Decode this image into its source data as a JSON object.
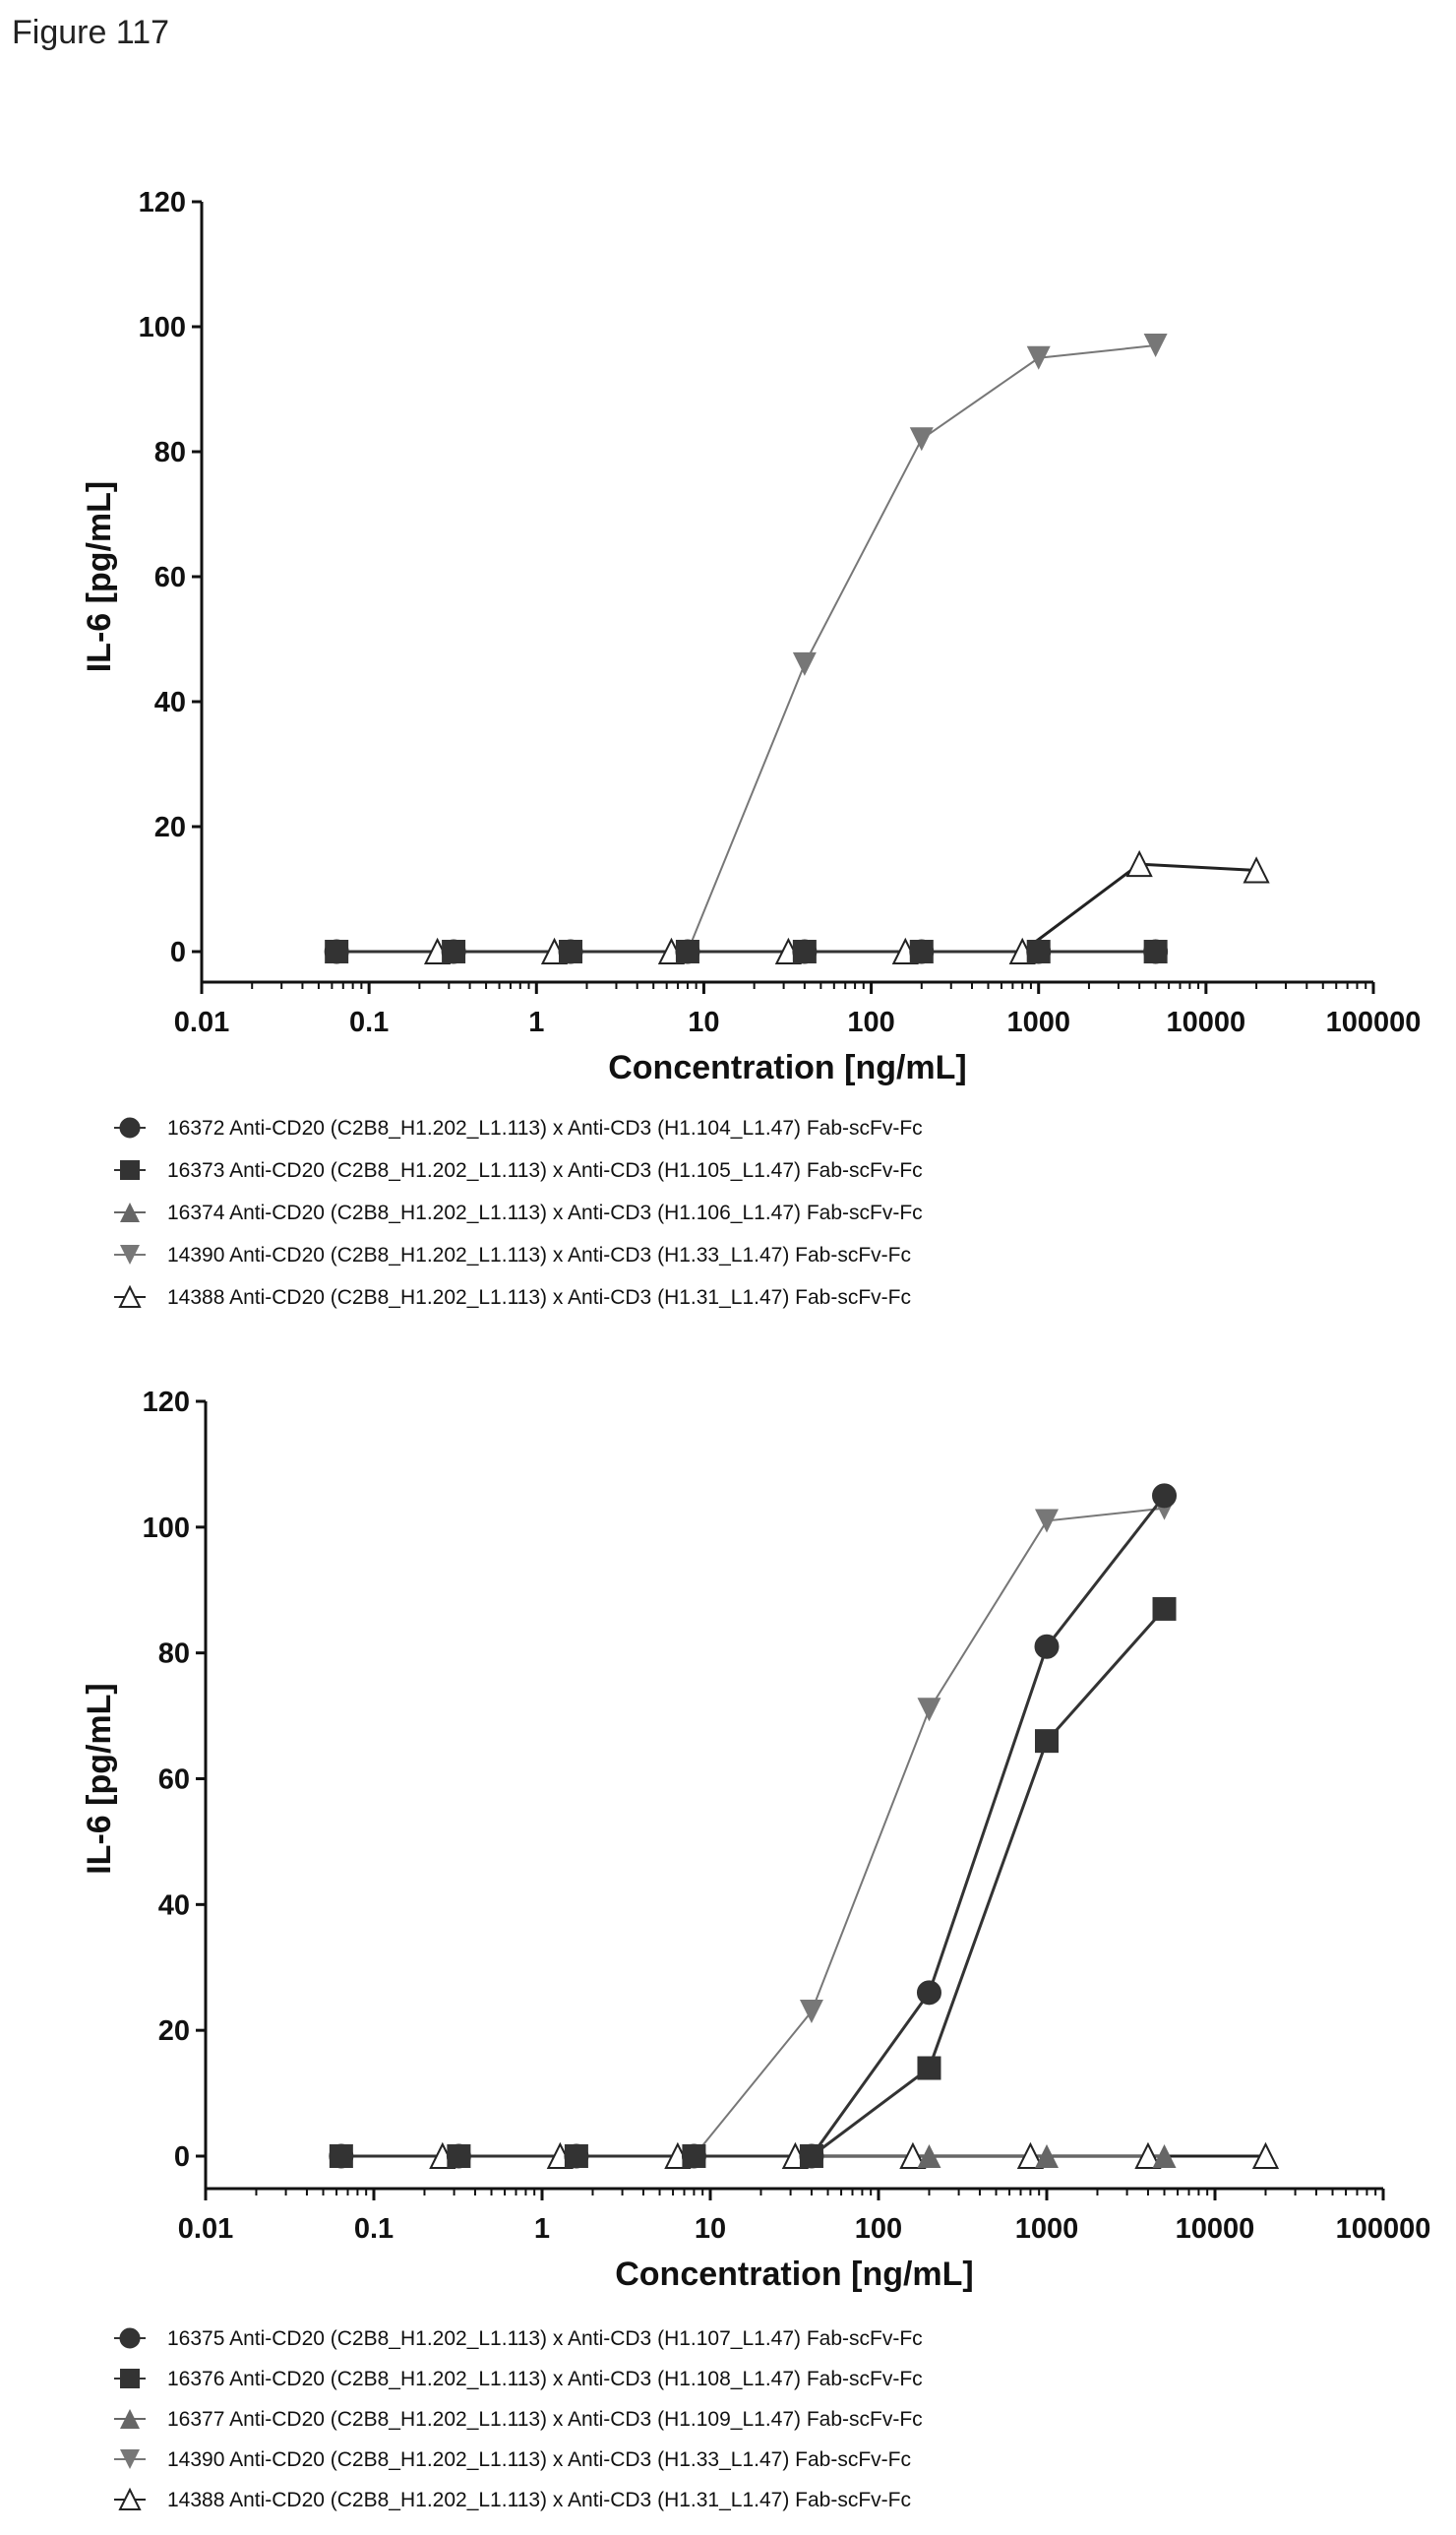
{
  "figure_title": "Figure 117",
  "chart_data": [
    {
      "type": "line",
      "xscale": "log",
      "xlabel": "Concentration [ng/mL]",
      "ylabel": "IL-6 [pg/mL]",
      "xlim": [
        0.01,
        100000
      ],
      "ylim": [
        -5,
        120
      ],
      "xticks": [
        "0.01",
        "0.1",
        "1",
        "10",
        "100",
        "1000",
        "10000",
        "100000"
      ],
      "xtick_values": [
        0.01,
        0.1,
        1,
        10,
        100,
        1000,
        10000,
        100000
      ],
      "yticks": [
        "0",
        "20",
        "40",
        "60",
        "80",
        "100",
        "120"
      ],
      "ytick_values": [
        0,
        20,
        40,
        60,
        80,
        100,
        120
      ],
      "grid": false,
      "legend_position": "bottom",
      "series": [
        {
          "name": "14390 Anti-CD20 (C2B8_H1.202_L1.113) x Anti-CD3 (H1.33_L1.47) Fab-scFv-Fc",
          "marker": "triangle-down",
          "color": "#777777",
          "x": [
            0.064,
            0.32,
            1.6,
            8,
            40,
            200,
            1000,
            5000
          ],
          "y": [
            0,
            0,
            0,
            0,
            46,
            82,
            95,
            97
          ]
        },
        {
          "name": "14388 Anti-CD20 (C2B8_H1.202_L1.113) x Anti-CD3 (H1.31_L1.47) Fab-scFv-Fc",
          "marker": "triangle-open",
          "color": "#222222",
          "x": [
            0.256,
            1.28,
            6.4,
            32,
            160,
            800,
            4000,
            20000
          ],
          "y": [
            0,
            0,
            0,
            0,
            0,
            0,
            14,
            13
          ]
        },
        {
          "name": "16374 Anti-CD20 (C2B8_H1.202_L1.113) x Anti-CD3 (H1.106_L1.47) Fab-scFv-Fc",
          "marker": "triangle-up",
          "color": "#666666",
          "x": [
            0.064,
            0.32,
            1.6,
            8,
            40,
            200,
            1000,
            5000
          ],
          "y": [
            0,
            0,
            0,
            0,
            0,
            0,
            0,
            0
          ]
        },
        {
          "name": "16372 Anti-CD20 (C2B8_H1.202_L1.113) x Anti-CD3 (H1.104_L1.47) Fab-scFv-Fc",
          "marker": "circle",
          "color": "#333333",
          "x": [
            0.064,
            0.32,
            1.6,
            8,
            40,
            200,
            1000,
            5000
          ],
          "y": [
            0,
            0,
            0,
            0,
            0,
            0,
            0,
            0
          ]
        },
        {
          "name": "16373 Anti-CD20 (C2B8_H1.202_L1.113) x Anti-CD3 (H1.105_L1.47) Fab-scFv-Fc",
          "marker": "square",
          "color": "#333333",
          "x": [
            0.064,
            0.32,
            1.6,
            8,
            40,
            200,
            1000,
            5000
          ],
          "y": [
            0,
            0,
            0,
            0,
            0,
            0,
            0,
            0
          ]
        }
      ],
      "legend_order": [
        3,
        4,
        2,
        0,
        1
      ]
    },
    {
      "type": "line",
      "xscale": "log",
      "xlabel": "Concentration [ng/mL]",
      "ylabel": "IL-6 [pg/mL]",
      "xlim": [
        0.01,
        100000
      ],
      "ylim": [
        -5,
        120
      ],
      "xticks": [
        "0.01",
        "0.1",
        "1",
        "10",
        "100",
        "1000",
        "10000",
        "100000"
      ],
      "xtick_values": [
        0.01,
        0.1,
        1,
        10,
        100,
        1000,
        10000,
        100000
      ],
      "yticks": [
        "0",
        "20",
        "40",
        "60",
        "80",
        "100",
        "120"
      ],
      "ytick_values": [
        0,
        20,
        40,
        60,
        80,
        100,
        120
      ],
      "grid": false,
      "legend_position": "bottom",
      "series": [
        {
          "name": "14390 Anti-CD20 (C2B8_H1.202_L1.113) x Anti-CD3 (H1.33_L1.47) Fab-scFv-Fc",
          "marker": "triangle-down",
          "color": "#777777",
          "x": [
            0.064,
            0.32,
            1.6,
            8,
            40,
            200,
            1000,
            5000
          ],
          "y": [
            0,
            0,
            0,
            0,
            23,
            71,
            101,
            103
          ]
        },
        {
          "name": "14388 Anti-CD20 (C2B8_H1.202_L1.113) x Anti-CD3 (H1.31_L1.47) Fab-scFv-Fc",
          "marker": "triangle-open",
          "color": "#222222",
          "x": [
            0.256,
            1.28,
            6.4,
            32,
            160,
            800,
            4000,
            20000
          ],
          "y": [
            0,
            0,
            0,
            0,
            0,
            0,
            0,
            0
          ]
        },
        {
          "name": "16377 Anti-CD20 (C2B8_H1.202_L1.113) x Anti-CD3 (H1.109_L1.47) Fab-scFv-Fc",
          "marker": "triangle-up",
          "color": "#666666",
          "x": [
            0.064,
            0.32,
            1.6,
            8,
            40,
            200,
            1000,
            5000
          ],
          "y": [
            0,
            0,
            0,
            0,
            0,
            0,
            0,
            0
          ]
        },
        {
          "name": "16375 Anti-CD20 (C2B8_H1.202_L1.113) x Anti-CD3 (H1.107_L1.47) Fab-scFv-Fc",
          "marker": "circle",
          "color": "#333333",
          "x": [
            0.064,
            0.32,
            1.6,
            8,
            40,
            200,
            1000,
            5000
          ],
          "y": [
            0,
            0,
            0,
            0,
            0,
            26,
            81,
            105
          ]
        },
        {
          "name": "16376 Anti-CD20 (C2B8_H1.202_L1.113) x Anti-CD3 (H1.108_L1.47) Fab-scFv-Fc",
          "marker": "square",
          "color": "#333333",
          "x": [
            0.064,
            0.32,
            1.6,
            8,
            40,
            200,
            1000,
            5000
          ],
          "y": [
            0,
            0,
            0,
            0,
            0,
            14,
            66,
            87
          ]
        }
      ],
      "legend_order": [
        3,
        4,
        2,
        0,
        1
      ]
    }
  ]
}
